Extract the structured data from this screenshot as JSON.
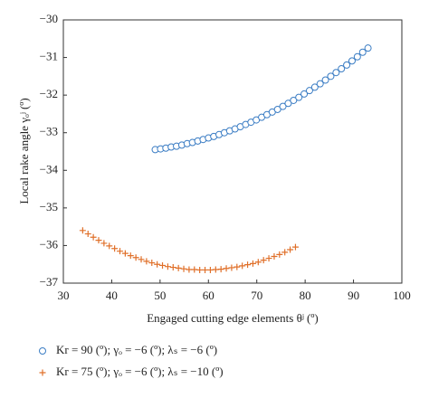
{
  "chart_data": {
    "type": "scatter",
    "xlabel": "Engaged cutting edge elements θʲ (º)",
    "ylabel": "Local rake angle γₒʲ (º)",
    "xlim": [
      30,
      100
    ],
    "xticks": [
      30,
      40,
      50,
      60,
      70,
      80,
      90,
      100
    ],
    "ylim": [
      -37,
      -30
    ],
    "yticks": [
      {
        "value": -37,
        "label": "−37"
      },
      {
        "value": -36,
        "label": "−36"
      },
      {
        "value": -35,
        "label": "−35"
      },
      {
        "value": -34,
        "label": "−34"
      },
      {
        "value": -33,
        "label": "−33"
      },
      {
        "value": -32,
        "label": "−32"
      },
      {
        "value": -31,
        "label": "−31"
      },
      {
        "value": -30,
        "label": "−30"
      }
    ],
    "series": [
      {
        "name": "Kr = 90 (º); γₒ = −6 (º); λₛ = −6 (º)",
        "color": "#3b7dc4",
        "marker": "circle",
        "x": [
          49,
          50.1,
          51.2,
          52.3,
          53.4,
          54.5,
          55.6,
          56.7,
          57.8,
          58.9,
          60,
          61.1,
          62.2,
          63.3,
          64.4,
          65.5,
          66.6,
          67.7,
          68.8,
          69.9,
          71,
          72.1,
          73.2,
          74.3,
          75.4,
          76.5,
          77.6,
          78.7,
          79.8,
          80.9,
          82,
          83.1,
          84.2,
          85.3,
          86.4,
          87.5,
          88.6,
          89.7,
          90.8,
          91.9,
          93
        ],
        "values": [
          -33.45,
          -33.43,
          -33.41,
          -33.38,
          -33.36,
          -33.33,
          -33.29,
          -33.26,
          -33.22,
          -33.18,
          -33.14,
          -33.1,
          -33.05,
          -33.0,
          -32.95,
          -32.9,
          -32.84,
          -32.78,
          -32.72,
          -32.66,
          -32.59,
          -32.52,
          -32.45,
          -32.38,
          -32.3,
          -32.22,
          -32.14,
          -32.06,
          -31.97,
          -31.88,
          -31.79,
          -31.7,
          -31.6,
          -31.5,
          -31.4,
          -31.3,
          -31.2,
          -31.09,
          -30.98,
          -30.86,
          -30.75
        ]
      },
      {
        "name": "Kr = 75 (º); γₒ = −6 (º); λₛ = −10 (º)",
        "color": "#e0702a",
        "marker": "plus",
        "x": [
          34,
          35.1,
          36.2,
          37.3,
          38.4,
          39.5,
          40.6,
          41.7,
          42.8,
          43.9,
          45,
          46.1,
          47.2,
          48.3,
          49.4,
          50.5,
          51.6,
          52.7,
          53.8,
          54.9,
          56,
          57.1,
          58.2,
          59.3,
          60.4,
          61.5,
          62.6,
          63.7,
          64.8,
          65.9,
          67,
          68.1,
          69.2,
          70.3,
          71.4,
          72.5,
          73.6,
          74.7,
          75.8,
          76.9,
          78
        ],
        "values": [
          -35.6,
          -35.69,
          -35.78,
          -35.86,
          -35.94,
          -36.01,
          -36.08,
          -36.15,
          -36.21,
          -36.27,
          -36.32,
          -36.37,
          -36.42,
          -36.46,
          -36.5,
          -36.53,
          -36.56,
          -36.58,
          -36.6,
          -36.62,
          -36.64,
          -36.64,
          -36.65,
          -36.65,
          -36.65,
          -36.64,
          -36.63,
          -36.61,
          -36.59,
          -36.57,
          -36.54,
          -36.51,
          -36.48,
          -36.44,
          -36.39,
          -36.34,
          -36.29,
          -36.24,
          -36.18,
          -36.11,
          -36.04
        ]
      }
    ]
  }
}
